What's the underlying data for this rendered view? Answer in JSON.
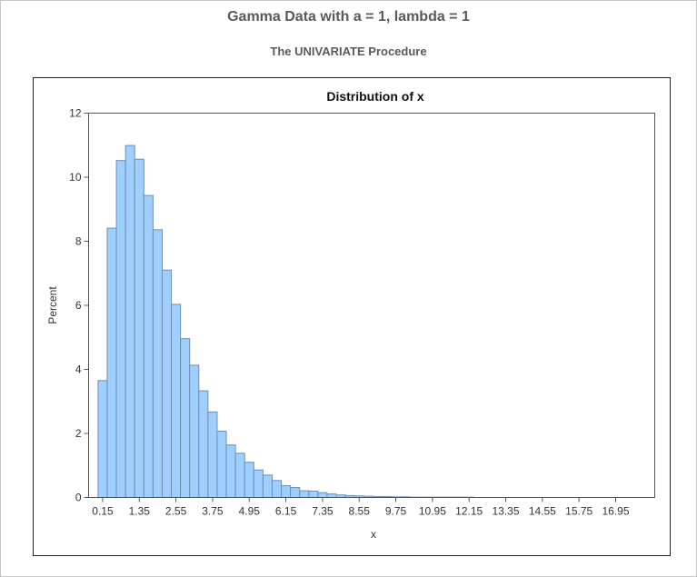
{
  "header": {
    "title": "Gamma Data with a = 1, lambda = 1",
    "subtitle": "The UNIVARIATE Procedure"
  },
  "chart_data": {
    "type": "bar",
    "title": "Distribution of x",
    "xlabel": "x",
    "ylabel": "Percent",
    "bin_width": 0.3,
    "bin_midpoints_start": 0.15,
    "xlim": [
      -0.31,
      18.23
    ],
    "ylim": [
      0,
      12
    ],
    "yticks": [
      "0",
      "2",
      "4",
      "6",
      "8",
      "10",
      "12"
    ],
    "xticks": [
      "0.15",
      "1.35",
      "2.55",
      "3.75",
      "4.95",
      "6.15",
      "7.35",
      "8.55",
      "9.75",
      "10.95",
      "12.15",
      "13.35",
      "14.55",
      "15.75",
      "16.95"
    ],
    "values": [
      3.65,
      8.41,
      10.52,
      10.99,
      10.56,
      9.43,
      8.36,
      7.1,
      6.03,
      4.96,
      4.13,
      3.33,
      2.67,
      2.07,
      1.64,
      1.38,
      1.1,
      0.86,
      0.7,
      0.53,
      0.37,
      0.31,
      0.21,
      0.2,
      0.15,
      0.11,
      0.08,
      0.06,
      0.05,
      0.04,
      0.03,
      0.03,
      0.02,
      0.02,
      0.01,
      0.01,
      0.01,
      0.01,
      0.01,
      0.01,
      0.01
    ],
    "bar_color": "#9fcfff",
    "bar_edge_color": "#6f8fae",
    "grid": false
  }
}
